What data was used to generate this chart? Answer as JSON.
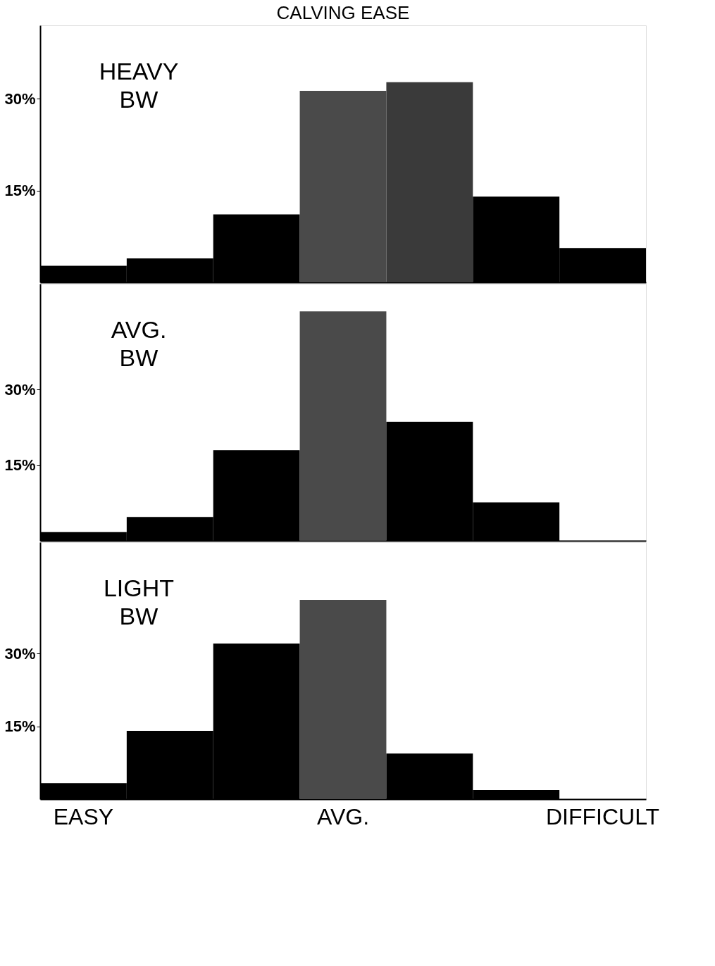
{
  "chart_data": [
    {
      "type": "bar",
      "title": "CALVING EASE",
      "annotations": [
        "HEAVY BW"
      ],
      "categories": [
        null,
        null,
        null,
        null,
        null,
        null,
        null
      ],
      "values": [
        2.7,
        3.9,
        11.1,
        31.3,
        32.7,
        14.0,
        5.6
      ],
      "colors": [
        "#000000",
        "#000000",
        "#000000",
        "#4a4a4a",
        "#3a3a3a",
        "#000000",
        "#000000"
      ],
      "ylim": [
        0,
        42
      ],
      "yticks": [
        {
          "value": 15,
          "label": "15%"
        },
        {
          "value": 30,
          "label": "30%"
        }
      ],
      "tick_labels": "y"
    },
    {
      "type": "bar",
      "annotations": [
        "AVG. BW"
      ],
      "categories": [
        null,
        null,
        null,
        null,
        null,
        null,
        null
      ],
      "values": [
        1.7,
        4.7,
        18.0,
        45.5,
        23.6,
        7.6,
        0
      ],
      "colors": [
        "#000000",
        "#000000",
        "#000000",
        "#4a4a4a",
        "#000000",
        "#000000",
        "#000000"
      ],
      "ylim": [
        0,
        51
      ],
      "yticks": [
        {
          "value": 15,
          "label": "15%"
        },
        {
          "value": 30,
          "label": "30%"
        }
      ],
      "tick_labels": "y"
    },
    {
      "type": "bar",
      "annotations": [
        "LIGHT BW"
      ],
      "categories": [
        "EASY",
        null,
        null,
        "AVG.",
        null,
        null,
        "DIFFICULT"
      ],
      "values": [
        3.3,
        14.1,
        32.1,
        41.1,
        9.4,
        1.9,
        0
      ],
      "colors": [
        "#000000",
        "#000000",
        "#000000",
        "#4a4a4a",
        "#000000",
        "#000000",
        "#000000"
      ],
      "ylim": [
        0,
        53
      ],
      "yticks": [
        {
          "value": 15,
          "label": "15%"
        },
        {
          "value": 30,
          "label": "30%"
        }
      ]
    }
  ]
}
